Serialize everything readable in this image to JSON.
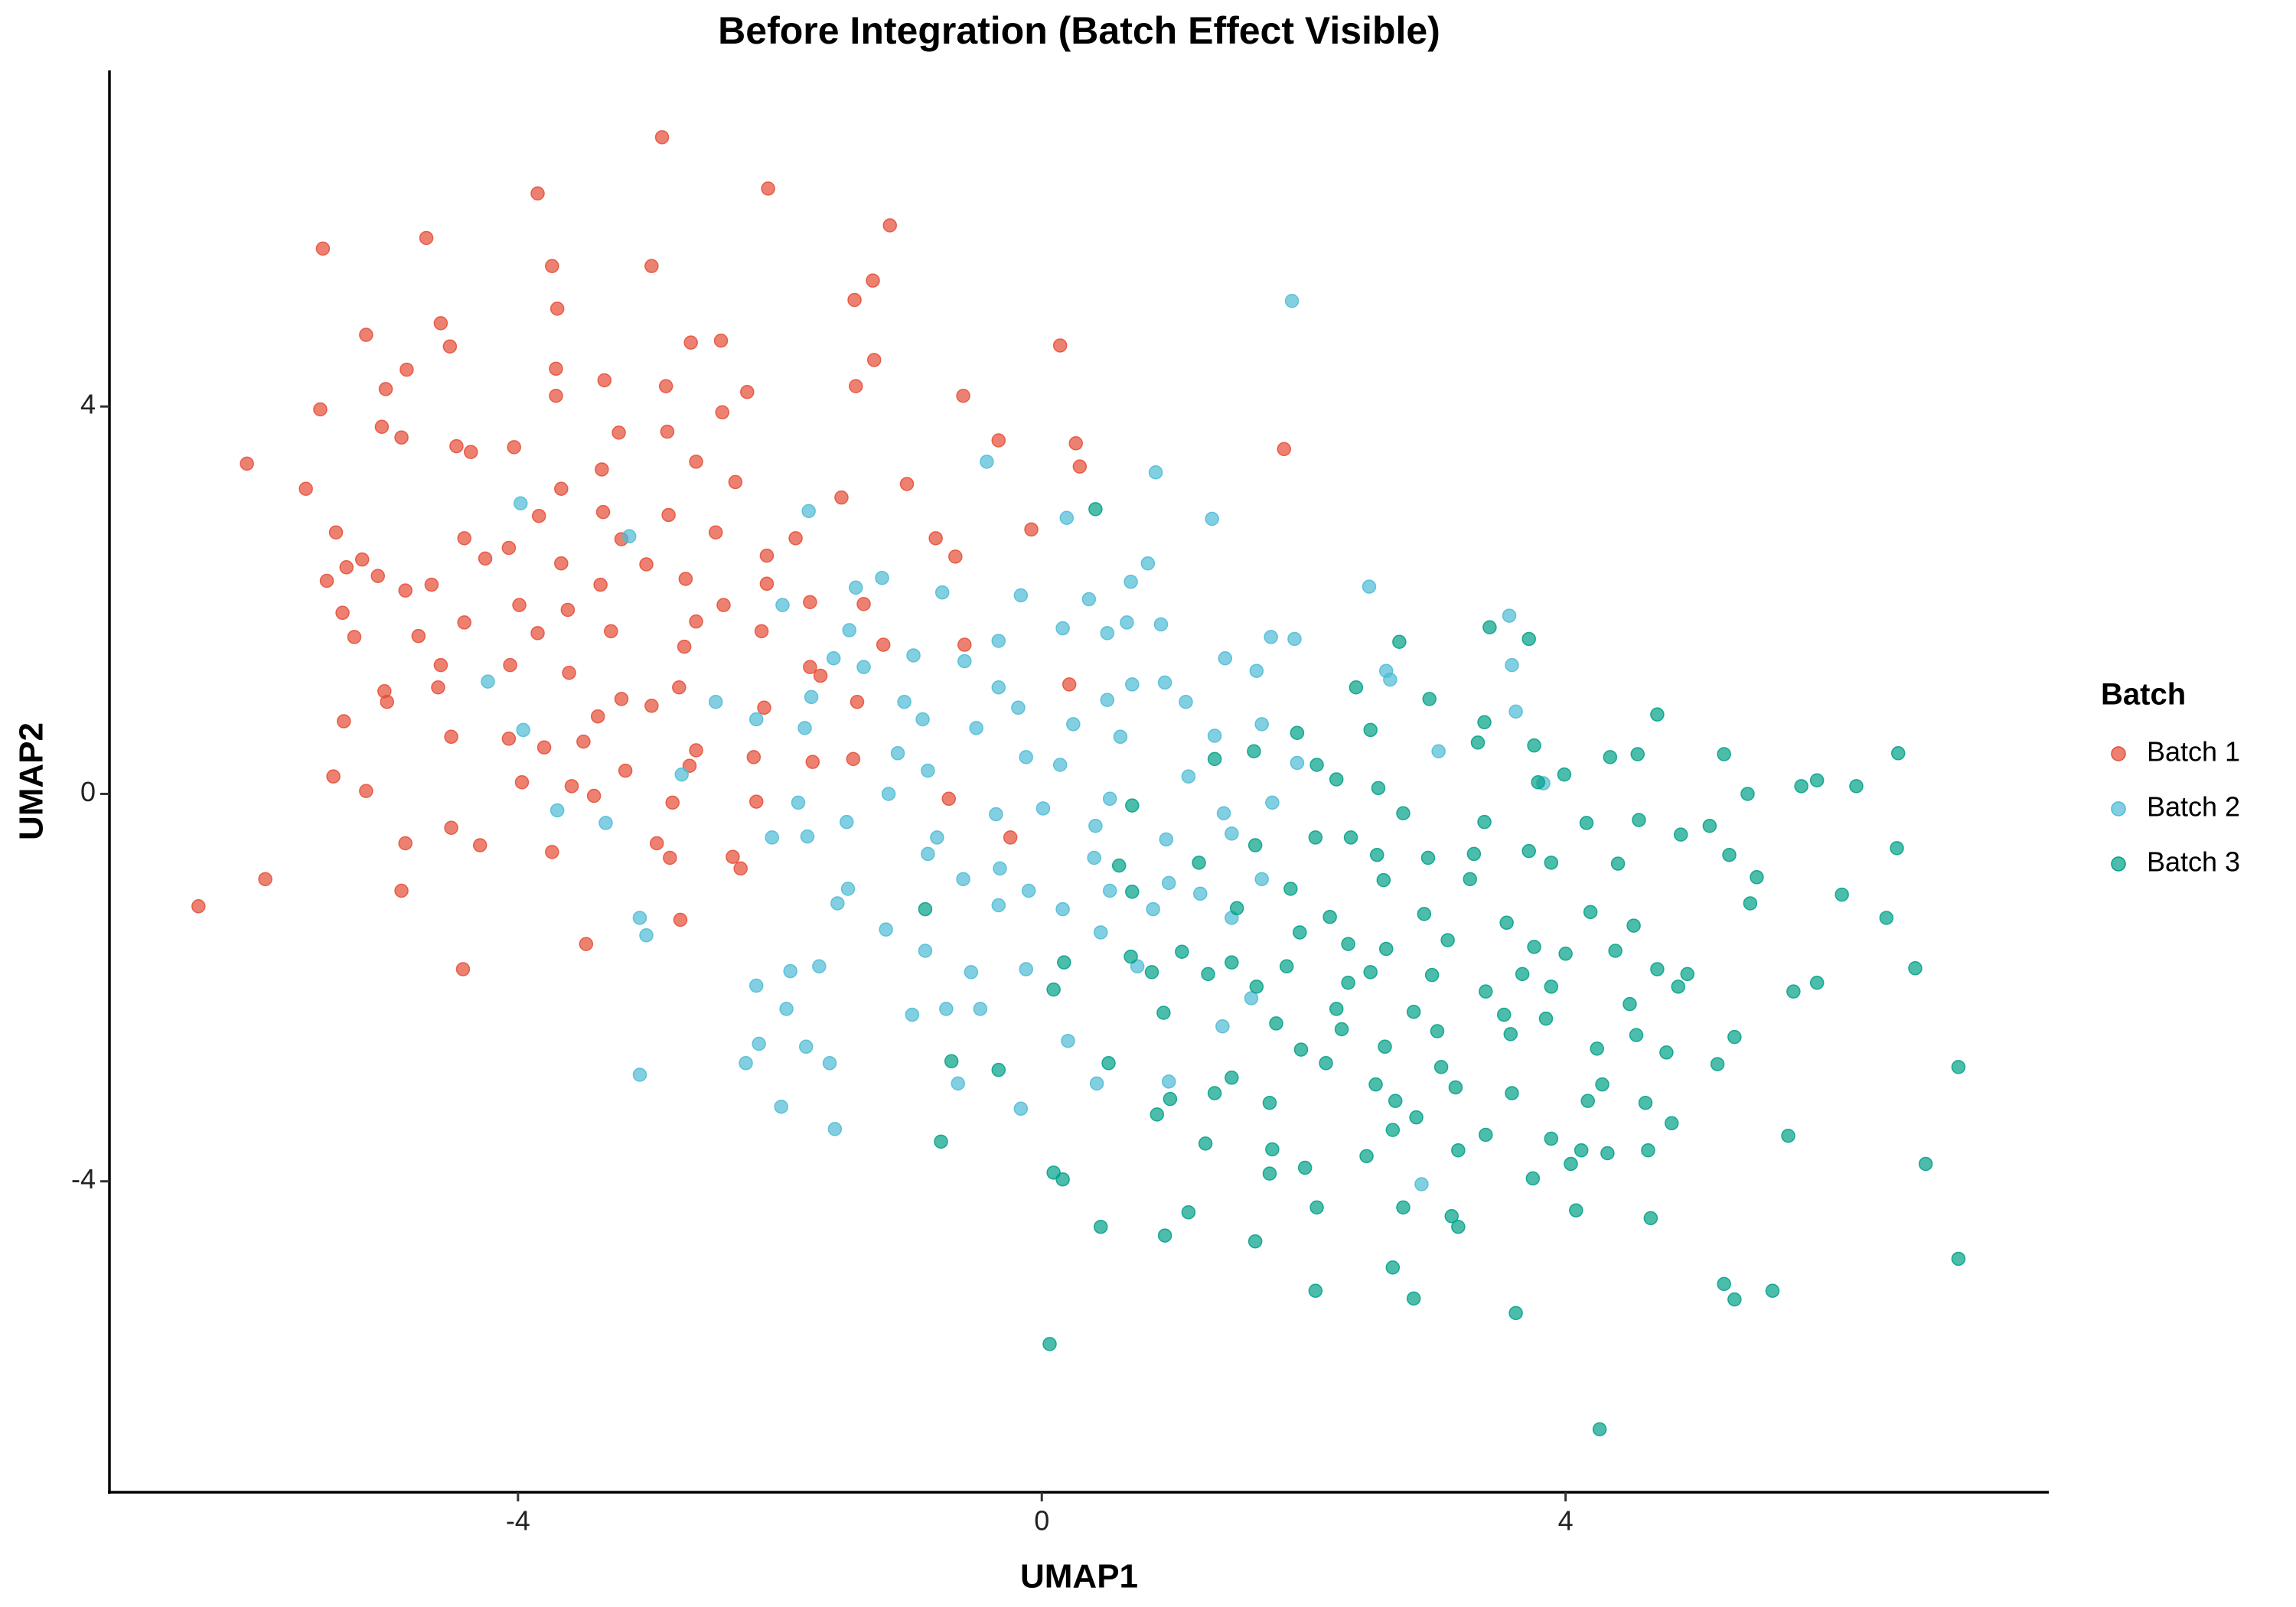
{
  "chart_data": {
    "type": "scatter",
    "title": "Before Integration (Batch Effect Visible)",
    "x_label": "UMAP1",
    "y_label": "UMAP2",
    "legend_title": "Batch",
    "legend": "right",
    "grid": false,
    "xlim": [
      -7.12,
      7.69
    ],
    "ylim": [
      -7.21,
      7.47
    ],
    "xticks": [
      -4,
      0,
      4
    ],
    "yticks": [
      -4,
      0,
      4
    ],
    "series": [
      {
        "name": "Batch 1",
        "color": "#E64B35",
        "x": [
          -2.9,
          -3.85,
          -2.09,
          -5.49,
          -4.7,
          -3.74,
          -2.98,
          -1.16,
          -1.29,
          -1.43,
          -3.7,
          -5.16,
          -4.59,
          -4.52,
          -2.68,
          -2.45,
          0.14,
          -1.28,
          -3.71,
          -4.85,
          -5.01,
          -3.34,
          -2.87,
          -1.42,
          -0.6,
          -2.25,
          -5.51,
          -3.71,
          -5.04,
          -4.89,
          -4.47,
          -4.03,
          -2.44,
          -3.23,
          -2.86,
          -0.33,
          0.26,
          1.85,
          -6.07,
          -4.36,
          -3.36,
          -2.64,
          -2.34,
          -1.03,
          0.29,
          -5.62,
          -3.67,
          -1.53,
          -5.39,
          -3.84,
          -3.35,
          -2.85,
          -0.08,
          -4.41,
          -4.07,
          -3.21,
          -2.49,
          -1.88,
          -0.81,
          -5.31,
          -5.19,
          -4.25,
          -3.67,
          -3.02,
          -2.1,
          -0.66,
          -5.46,
          -5.07,
          -4.66,
          -3.37,
          -2.72,
          -2.1,
          -4.86,
          -5.34,
          -3.99,
          -3.62,
          -2.43,
          -1.77,
          -1.36,
          -5.25,
          -4.76,
          -4.41,
          -3.85,
          -3.29,
          -2.64,
          -2.14,
          -1.21,
          -0.59,
          -4.59,
          -4.06,
          -3.61,
          -2.73,
          -1.77,
          0.21,
          -5.02,
          -4.61,
          -3.21,
          -2.77,
          -1.69,
          -5.0,
          -5.33,
          -3.39,
          -2.98,
          -2.12,
          -1.41,
          -4.51,
          -4.07,
          -3.8,
          -3.5,
          -2.64,
          -2.2,
          -1.44,
          -5.41,
          -3.97,
          -3.18,
          -2.69,
          -1.75,
          -5.16,
          -3.59,
          -3.42,
          -2.82,
          -2.18,
          -0.71,
          -4.86,
          -4.51,
          -4.29,
          -3.74,
          -2.94,
          -2.36,
          -2.3,
          -2.84,
          -0.24,
          -5.93,
          -4.89,
          -6.44,
          -2.76,
          -3.48,
          -4.42
        ],
        "values": [
          6.78,
          6.2,
          6.25,
          5.63,
          5.74,
          5.45,
          5.45,
          5.87,
          5.3,
          5.1,
          5.01,
          4.74,
          4.86,
          4.62,
          4.66,
          4.68,
          4.63,
          4.48,
          4.39,
          4.38,
          4.18,
          4.27,
          4.21,
          4.21,
          4.11,
          4.15,
          3.97,
          4.11,
          3.79,
          3.68,
          3.59,
          3.58,
          3.94,
          3.73,
          3.74,
          3.65,
          3.62,
          3.56,
          3.41,
          3.53,
          3.35,
          3.43,
          3.22,
          3.2,
          3.38,
          3.15,
          3.15,
          3.06,
          2.7,
          2.87,
          2.91,
          2.88,
          2.73,
          2.64,
          2.54,
          2.63,
          2.7,
          2.64,
          2.64,
          2.34,
          2.42,
          2.43,
          2.38,
          2.37,
          2.46,
          2.45,
          2.2,
          2.25,
          2.16,
          2.16,
          2.22,
          2.17,
          2.1,
          1.87,
          1.95,
          1.9,
          1.95,
          1.98,
          1.96,
          1.62,
          1.63,
          1.77,
          1.66,
          1.68,
          1.78,
          1.68,
          1.54,
          1.54,
          1.33,
          1.33,
          1.25,
          1.52,
          1.31,
          1.13,
          1.06,
          1.1,
          0.98,
          1.1,
          1.22,
          0.95,
          0.75,
          0.8,
          0.91,
          0.89,
          0.95,
          0.59,
          0.57,
          0.48,
          0.54,
          0.45,
          0.38,
          0.36,
          0.18,
          0.12,
          0.24,
          0.29,
          0.33,
          0.03,
          0.08,
          -0.02,
          -0.09,
          -0.08,
          -0.05,
          -0.51,
          -0.35,
          -0.53,
          -0.6,
          -0.51,
          -0.65,
          -0.77,
          -0.66,
          -0.45,
          -0.88,
          -1.0,
          -1.16,
          -1.3,
          -1.55,
          -1.81
        ]
      },
      {
        "name": "Batch 2",
        "color": "#4DBBD5",
        "x": [
          1.91,
          0.87,
          -0.42,
          -3.98,
          -1.78,
          0.19,
          1.3,
          -3.15,
          0.81,
          -1.22,
          -1.42,
          0.68,
          2.5,
          -0.76,
          -0.16,
          0.36,
          3.57,
          -1.98,
          0.65,
          0.91,
          0.5,
          1.75,
          1.93,
          -1.47,
          -0.33,
          0.16,
          -0.98,
          -1.59,
          1.4,
          3.59,
          2.63,
          -1.36,
          -0.59,
          0.69,
          -4.23,
          -0.33,
          0.94,
          1.64,
          2.66,
          -2.49,
          -1.76,
          -1.05,
          -0.18,
          0.5,
          1.1,
          3.62,
          -2.18,
          -0.91,
          0.24,
          1.68,
          -3.96,
          -1.81,
          -0.5,
          0.6,
          1.32,
          -1.1,
          -0.12,
          3.03,
          1.95,
          0.14,
          -0.87,
          1.12,
          3.83,
          -2.75,
          -1.17,
          0.52,
          1.76,
          0.01,
          -3.7,
          -1.86,
          -0.35,
          1.39,
          -1.49,
          0.41,
          -2.06,
          -1.79,
          -3.33,
          -0.8,
          0.95,
          1.45,
          -0.87,
          -0.32,
          0.4,
          -0.6,
          0.97,
          1.68,
          -1.48,
          -0.1,
          0.52,
          1.21,
          -1.56,
          -0.33,
          0.16,
          0.85,
          -3.07,
          1.45,
          -1.19,
          -3.02,
          0.45,
          -0.89,
          -1.7,
          -0.12,
          -1.92,
          -0.54,
          0.73,
          -2.18,
          1.6,
          -1.95,
          -0.99,
          -0.73,
          -0.47,
          -2.16,
          -1.8,
          0.2,
          1.38,
          -2.26,
          -1.62,
          -3.07,
          -0.64,
          0.42,
          0.97,
          -1.99,
          -0.16,
          -1.58,
          2.9
        ],
        "values": [
          5.09,
          3.32,
          3.43,
          3.0,
          2.92,
          2.85,
          2.84,
          2.66,
          2.38,
          2.23,
          2.13,
          2.19,
          2.14,
          2.08,
          2.05,
          2.01,
          1.84,
          1.95,
          1.77,
          1.75,
          1.66,
          1.62,
          1.6,
          1.69,
          1.58,
          1.71,
          1.43,
          1.4,
          1.4,
          1.33,
          1.27,
          1.31,
          1.37,
          1.13,
          1.16,
          1.1,
          1.15,
          1.27,
          1.18,
          0.95,
          1.0,
          0.95,
          0.89,
          0.97,
          0.95,
          0.85,
          0.77,
          0.77,
          0.72,
          0.72,
          0.66,
          0.68,
          0.68,
          0.59,
          0.6,
          0.42,
          0.38,
          0.44,
          0.32,
          0.3,
          0.24,
          0.18,
          0.11,
          0.2,
          0.0,
          -0.05,
          -0.09,
          -0.15,
          -0.17,
          -0.09,
          -0.21,
          -0.2,
          -0.29,
          -0.33,
          -0.45,
          -0.44,
          -0.3,
          -0.45,
          -0.47,
          -0.41,
          -0.62,
          -0.77,
          -0.66,
          -0.88,
          -0.92,
          -0.88,
          -0.98,
          -1.0,
          -1.0,
          -1.03,
          -1.13,
          -1.15,
          -1.19,
          -1.19,
          -1.28,
          -1.28,
          -1.4,
          -1.46,
          -1.43,
          -1.62,
          -1.78,
          -1.81,
          -1.83,
          -1.84,
          -1.78,
          -1.98,
          -2.11,
          -2.22,
          -2.28,
          -2.22,
          -2.22,
          -2.58,
          -2.61,
          -2.55,
          -2.4,
          -2.78,
          -2.78,
          -2.9,
          -2.99,
          -2.99,
          -2.97,
          -3.23,
          -3.25,
          -3.46,
          -4.03
        ]
      },
      {
        "name": "Batch 3",
        "color": "#00A087",
        "x": [
          0.41,
          3.42,
          2.73,
          3.72,
          2.4,
          2.96,
          4.7,
          3.38,
          2.51,
          1.95,
          3.76,
          3.33,
          4.34,
          4.55,
          5.21,
          6.54,
          1.32,
          1.62,
          2.1,
          3.99,
          3.79,
          5.39,
          5.8,
          5.92,
          6.22,
          0.69,
          2.25,
          2.57,
          2.76,
          3.38,
          4.16,
          4.56,
          4.88,
          5.1,
          6.53,
          1.63,
          2.09,
          2.36,
          2.56,
          2.95,
          3.3,
          3.72,
          5.25,
          0.59,
          1.2,
          1.9,
          2.61,
          3.27,
          3.89,
          4.4,
          5.46,
          6.11,
          5.41,
          -0.89,
          0.69,
          1.49,
          2.2,
          2.92,
          3.55,
          4.19,
          4.52,
          6.45,
          1.97,
          2.34,
          2.63,
          3.1,
          3.76,
          4.0,
          4.38,
          0.68,
          1.07,
          1.45,
          0.17,
          0.84,
          1.27,
          1.87,
          2.51,
          2.98,
          3.67,
          4.7,
          4.93,
          6.67,
          0.09,
          1.64,
          2.34,
          3.39,
          3.89,
          4.86,
          5.92,
          5.74,
          0.93,
          2.25,
          2.84,
          3.53,
          4.49,
          1.79,
          2.29,
          3.02,
          3.58,
          3.85,
          5.29,
          1.98,
          2.62,
          4.24,
          4.77,
          4.54,
          -0.69,
          -0.33,
          0.51,
          2.17,
          3.05,
          5.16,
          7.0,
          1.45,
          2.55,
          3.16,
          3.59,
          4.28,
          1.32,
          0.98,
          1.74,
          2.7,
          4.17,
          4.61,
          0.88,
          2.86,
          3.39,
          3.89,
          4.81,
          2.68,
          -0.77,
          1.25,
          1.76,
          2.48,
          3.18,
          4.12,
          4.63,
          5.7,
          4.04,
          4.32,
          6.75,
          0.09,
          0.16,
          1.74,
          2.01,
          3.75,
          1.12,
          2.1,
          2.76,
          3.13,
          4.08,
          4.65,
          3.18,
          0.45,
          0.94,
          1.63,
          7.0,
          2.68,
          2.09,
          2.84,
          5.21,
          5.29,
          5.58,
          3.62,
          0.06,
          4.26
        ],
        "values": [
          2.94,
          1.72,
          1.57,
          1.6,
          1.1,
          0.98,
          0.82,
          0.74,
          0.66,
          0.63,
          0.5,
          0.53,
          0.38,
          0.41,
          0.41,
          0.42,
          0.36,
          0.44,
          0.3,
          0.2,
          0.12,
          0.0,
          0.08,
          0.14,
          0.08,
          -0.12,
          0.15,
          0.06,
          -0.2,
          -0.29,
          -0.3,
          -0.27,
          -0.42,
          -0.33,
          -0.56,
          -0.53,
          -0.45,
          -0.45,
          -0.63,
          -0.66,
          -0.62,
          -0.59,
          -0.63,
          -0.74,
          -0.71,
          -0.98,
          -0.89,
          -0.88,
          -0.71,
          -0.72,
          -0.86,
          -1.04,
          -1.13,
          -1.19,
          -1.01,
          -1.18,
          -1.27,
          -1.24,
          -1.33,
          -1.22,
          -1.36,
          -1.28,
          -1.43,
          -1.55,
          -1.6,
          -1.51,
          -1.58,
          -1.65,
          -1.62,
          -1.68,
          -1.63,
          -1.74,
          -1.74,
          -1.84,
          -1.86,
          -1.78,
          -1.84,
          -1.87,
          -1.86,
          -1.81,
          -1.86,
          -1.8,
          -2.02,
          -1.99,
          -1.95,
          -2.04,
          -1.99,
          -1.99,
          -1.95,
          -2.04,
          -2.26,
          -2.22,
          -2.25,
          -2.28,
          -2.17,
          -2.37,
          -2.43,
          -2.45,
          -2.48,
          -2.32,
          -2.51,
          -2.64,
          -2.61,
          -2.63,
          -2.67,
          -2.49,
          -2.76,
          -2.85,
          -2.78,
          -2.78,
          -2.82,
          -2.79,
          -2.82,
          -2.93,
          -3.0,
          -3.03,
          -3.09,
          -3.0,
          -3.09,
          -3.15,
          -3.19,
          -3.17,
          -3.17,
          -3.19,
          -3.31,
          -3.34,
          -3.52,
          -3.56,
          -3.4,
          -3.47,
          -3.59,
          -3.61,
          -3.67,
          -3.74,
          -3.68,
          -3.68,
          -3.68,
          -3.53,
          -3.82,
          -3.71,
          -3.82,
          -3.91,
          -3.98,
          -3.92,
          -3.86,
          -3.97,
          -4.32,
          -4.27,
          -4.27,
          -4.36,
          -4.3,
          -4.38,
          -4.47,
          -4.47,
          -4.56,
          -4.62,
          -4.8,
          -4.89,
          -5.13,
          -5.21,
          -5.06,
          -5.22,
          -5.13,
          -5.36,
          -5.68,
          -6.56
        ]
      }
    ]
  }
}
